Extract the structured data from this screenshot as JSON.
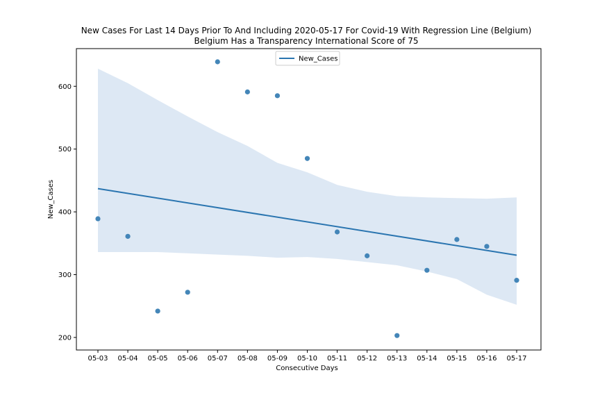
{
  "chart_data": {
    "type": "scatter",
    "title": "New Cases For Last 14 Days Prior To And Including 2020-05-17 For Covid-19 With Regression Line (Belgium)",
    "subtitle": "Belgium Has a Transparency International Score of 75",
    "xlabel": "Consecutive Days",
    "ylabel": "New_Cases",
    "categories": [
      "05-03",
      "05-04",
      "05-05",
      "05-06",
      "05-07",
      "05-08",
      "05-09",
      "05-10",
      "05-11",
      "05-12",
      "05-13",
      "05-14",
      "05-15",
      "05-16",
      "05-17"
    ],
    "series": [
      {
        "name": "New_Cases",
        "values": [
          389,
          361,
          242,
          272,
          639,
          591,
          585,
          485,
          368,
          330,
          203,
          307,
          356,
          345,
          291
        ]
      }
    ],
    "regression_line": {
      "start": [
        0,
        437
      ],
      "end": [
        14,
        331
      ]
    },
    "confidence_band": {
      "upper": [
        628,
        605,
        578,
        552,
        527,
        505,
        478,
        463,
        443,
        432,
        425,
        423,
        422,
        421,
        423
      ],
      "lower": [
        336,
        336,
        336,
        334,
        332,
        330,
        327,
        328,
        325,
        320,
        315,
        305,
        293,
        268,
        252
      ]
    },
    "ylim": [
      180,
      660
    ],
    "yticks": [
      200,
      300,
      400,
      500,
      600
    ],
    "legend_position": "top-center",
    "grid": false,
    "colors": {
      "points": "#3a7fb4",
      "line": "#2a75b0",
      "band": "#dde8f4"
    }
  }
}
